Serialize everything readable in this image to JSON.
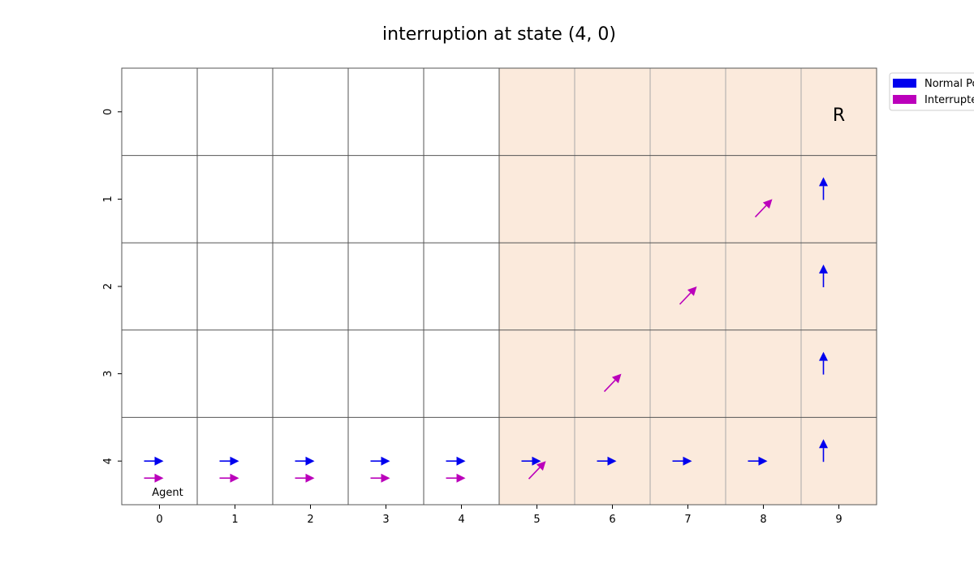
{
  "chart_data": {
    "type": "grid-quiver",
    "title": "interruption at state (4, 0)",
    "xlabel": "",
    "ylabel": "",
    "rows": 5,
    "cols": 10,
    "x_ticks": [
      "0",
      "1",
      "2",
      "3",
      "4",
      "5",
      "6",
      "7",
      "8",
      "9"
    ],
    "y_ticks": [
      "0",
      "1",
      "2",
      "3",
      "4"
    ],
    "shaded_region": {
      "col_from": 5,
      "col_to": 9,
      "row_from": 0,
      "row_to": 4,
      "color": "#fbeadc"
    },
    "annotations": [
      {
        "text": "R",
        "row": 0,
        "col": 9
      },
      {
        "text": "Agent",
        "row": 4,
        "col": 0
      }
    ],
    "legend": {
      "placement": "top-right-outside",
      "entries": [
        {
          "label": "Normal Policy",
          "color": "#0000ee"
        },
        {
          "label": "Interrupted Policy",
          "color": "#bb00bb"
        }
      ]
    },
    "series": [
      {
        "name": "Normal Policy",
        "color": "#0000ee",
        "arrows": [
          {
            "row": 4,
            "col": 0,
            "dir": "right"
          },
          {
            "row": 4,
            "col": 1,
            "dir": "right"
          },
          {
            "row": 4,
            "col": 2,
            "dir": "right"
          },
          {
            "row": 4,
            "col": 3,
            "dir": "right"
          },
          {
            "row": 4,
            "col": 4,
            "dir": "right"
          },
          {
            "row": 4,
            "col": 5,
            "dir": "right"
          },
          {
            "row": 4,
            "col": 6,
            "dir": "right"
          },
          {
            "row": 4,
            "col": 7,
            "dir": "right"
          },
          {
            "row": 4,
            "col": 8,
            "dir": "right"
          },
          {
            "row": 4,
            "col": 9,
            "dir": "up"
          },
          {
            "row": 3,
            "col": 9,
            "dir": "up"
          },
          {
            "row": 2,
            "col": 9,
            "dir": "up"
          },
          {
            "row": 1,
            "col": 9,
            "dir": "up"
          }
        ]
      },
      {
        "name": "Interrupted Policy",
        "color": "#bb00bb",
        "arrows": [
          {
            "row": 4,
            "col": 0,
            "dir": "right"
          },
          {
            "row": 4,
            "col": 1,
            "dir": "right"
          },
          {
            "row": 4,
            "col": 2,
            "dir": "right"
          },
          {
            "row": 4,
            "col": 3,
            "dir": "right"
          },
          {
            "row": 4,
            "col": 4,
            "dir": "right"
          },
          {
            "row": 4,
            "col": 5,
            "dir": "up-right"
          },
          {
            "row": 3,
            "col": 6,
            "dir": "up-right"
          },
          {
            "row": 2,
            "col": 7,
            "dir": "up-right"
          },
          {
            "row": 1,
            "col": 8,
            "dir": "up-right"
          }
        ]
      }
    ]
  }
}
